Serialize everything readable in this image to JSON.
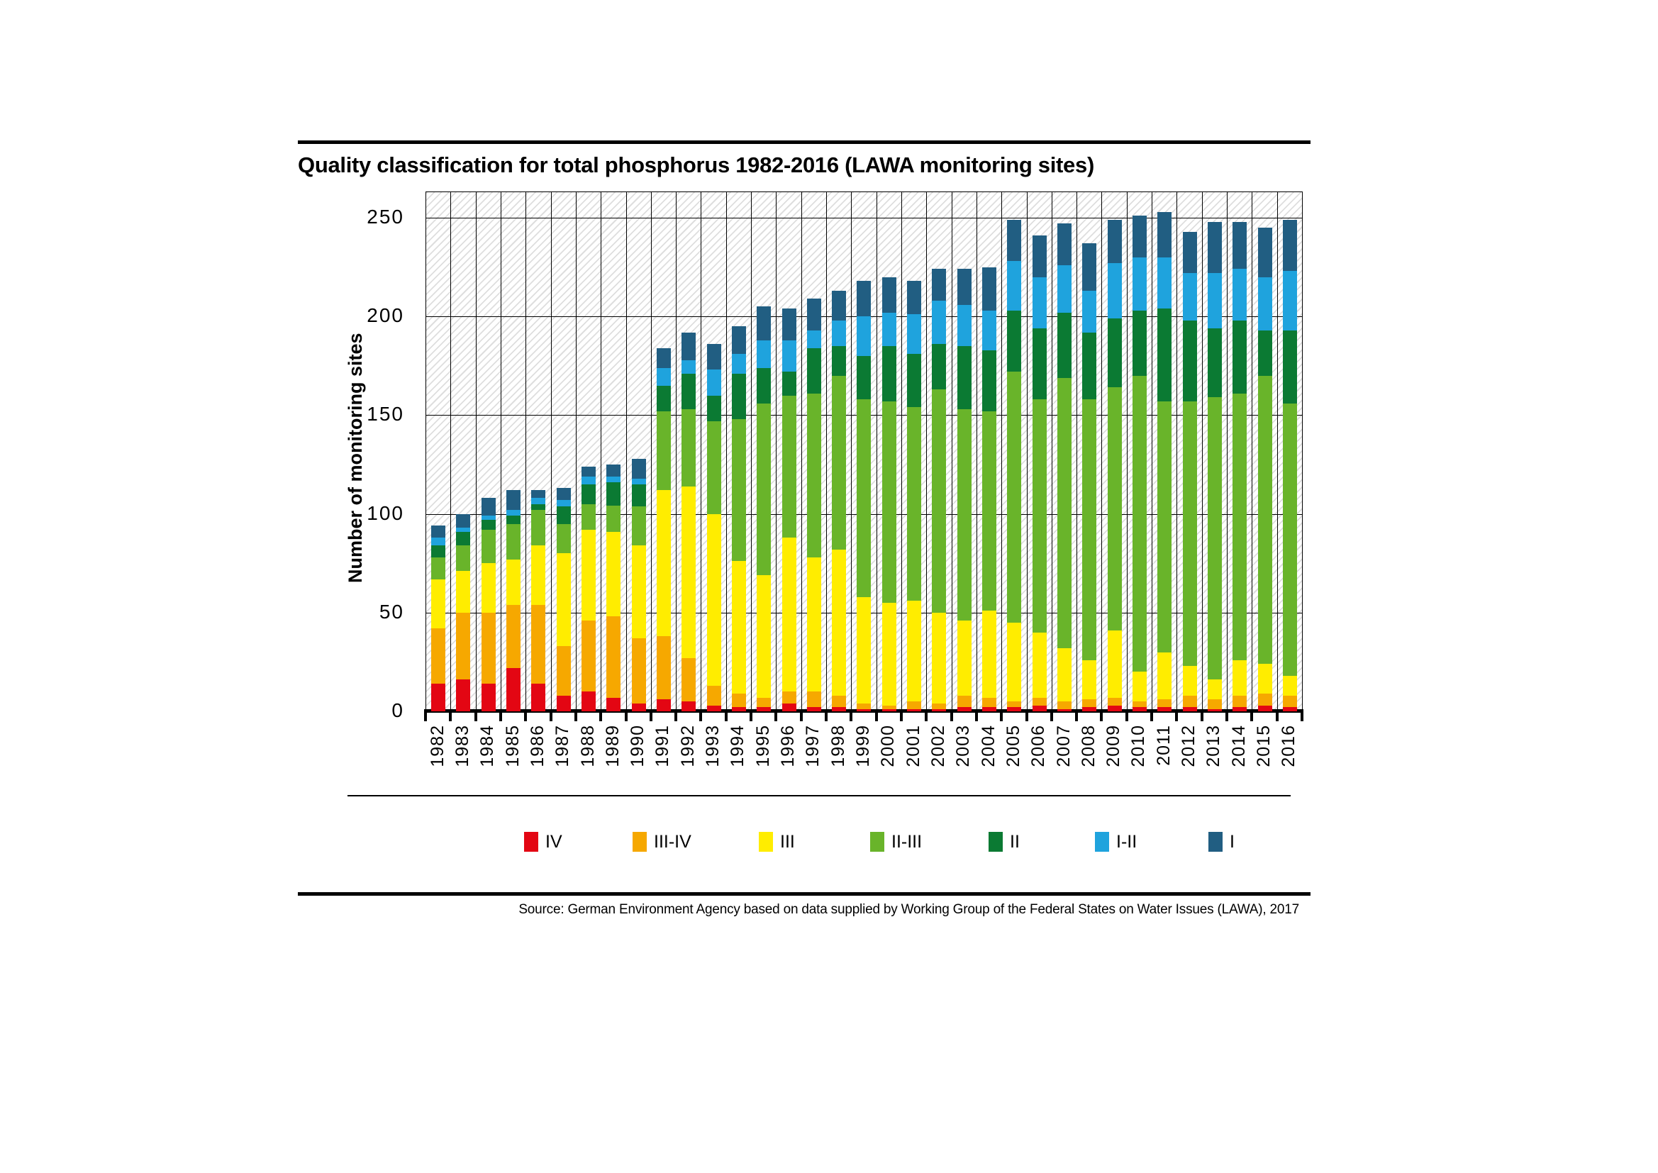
{
  "title": "Quality classification for total phosphorus 1982-2016 (LAWA monitoring sites)",
  "source": "Source: German Environment Agency based on data supplied by Working Group of the Federal States on Water Issues (LAWA), 2017",
  "chart_data": {
    "type": "bar",
    "stacked": true,
    "title": "Quality classification for total phosphorus 1982-2016 (LAWA monitoring sites)",
    "xlabel": "",
    "ylabel": "Number of monitoring sites",
    "ylim": [
      0,
      263
    ],
    "yticks": [
      0,
      50,
      100,
      150,
      200,
      250
    ],
    "grid": true,
    "background_hatch": "diagonal-light-gray",
    "legend_position": "bottom",
    "categories": [
      1982,
      1983,
      1984,
      1985,
      1986,
      1987,
      1988,
      1989,
      1990,
      1991,
      1992,
      1993,
      1994,
      1995,
      1996,
      1997,
      1998,
      1999,
      2000,
      2001,
      2002,
      2003,
      2004,
      2005,
      2006,
      2007,
      2008,
      2009,
      2010,
      2011,
      2012,
      2013,
      2014,
      2015,
      2016
    ],
    "series": [
      {
        "name": "IV",
        "color": "#e30613",
        "values": [
          14,
          16,
          14,
          22,
          14,
          8,
          10,
          7,
          4,
          6,
          5,
          3,
          2,
          2,
          4,
          2,
          2,
          1,
          1,
          1,
          1,
          2,
          2,
          2,
          3,
          1,
          2,
          3,
          2,
          2,
          2,
          1,
          2,
          3,
          2
        ]
      },
      {
        "name": "III-IV",
        "color": "#f6a800",
        "values": [
          28,
          34,
          36,
          32,
          40,
          25,
          36,
          41,
          33,
          32,
          22,
          10,
          7,
          5,
          6,
          8,
          6,
          3,
          2,
          4,
          3,
          6,
          5,
          3,
          4,
          4,
          4,
          4,
          3,
          4,
          6,
          5,
          6,
          6,
          6
        ]
      },
      {
        "name": "III",
        "color": "#ffed00",
        "values": [
          25,
          21,
          25,
          23,
          30,
          47,
          46,
          43,
          47,
          74,
          87,
          87,
          67,
          62,
          78,
          68,
          74,
          54,
          52,
          51,
          46,
          38,
          44,
          40,
          33,
          27,
          20,
          34,
          15,
          24,
          15,
          10,
          18,
          15,
          10
        ]
      },
      {
        "name": "II-III",
        "color": "#69b42a",
        "values": [
          11,
          13,
          17,
          18,
          18,
          15,
          13,
          13,
          20,
          40,
          39,
          47,
          72,
          87,
          72,
          83,
          88,
          100,
          102,
          98,
          113,
          107,
          101,
          127,
          118,
          137,
          132,
          123,
          150,
          127,
          134,
          143,
          135,
          146,
          138
        ]
      },
      {
        "name": "II",
        "color": "#0b7a33",
        "values": [
          6,
          7,
          5,
          4,
          3,
          9,
          10,
          12,
          11,
          13,
          18,
          13,
          23,
          18,
          12,
          23,
          15,
          22,
          28,
          27,
          23,
          32,
          31,
          31,
          36,
          33,
          34,
          35,
          33,
          47,
          41,
          35,
          37,
          23,
          37
        ]
      },
      {
        "name": "I-II",
        "color": "#1fa3dd",
        "values": [
          4,
          2,
          2,
          3,
          3,
          3,
          4,
          3,
          3,
          9,
          7,
          13,
          10,
          14,
          16,
          9,
          13,
          20,
          17,
          20,
          22,
          21,
          20,
          25,
          26,
          24,
          21,
          28,
          27,
          26,
          24,
          28,
          26,
          27,
          30
        ]
      },
      {
        "name": "I",
        "color": "#215e82",
        "values": [
          6,
          7,
          9,
          10,
          4,
          6,
          5,
          6,
          10,
          10,
          14,
          13,
          14,
          17,
          16,
          16,
          15,
          18,
          18,
          17,
          16,
          18,
          22,
          21,
          21,
          21,
          24,
          22,
          21,
          23,
          21,
          26,
          24,
          25,
          26
        ]
      }
    ],
    "totals": [
      94,
      100,
      108,
      112,
      112,
      113,
      124,
      125,
      128,
      184,
      192,
      186,
      195,
      205,
      204,
      209,
      213,
      218,
      220,
      218,
      224,
      224,
      225,
      249,
      241,
      247,
      237,
      249,
      251,
      253,
      243,
      248,
      248,
      245,
      249
    ]
  }
}
